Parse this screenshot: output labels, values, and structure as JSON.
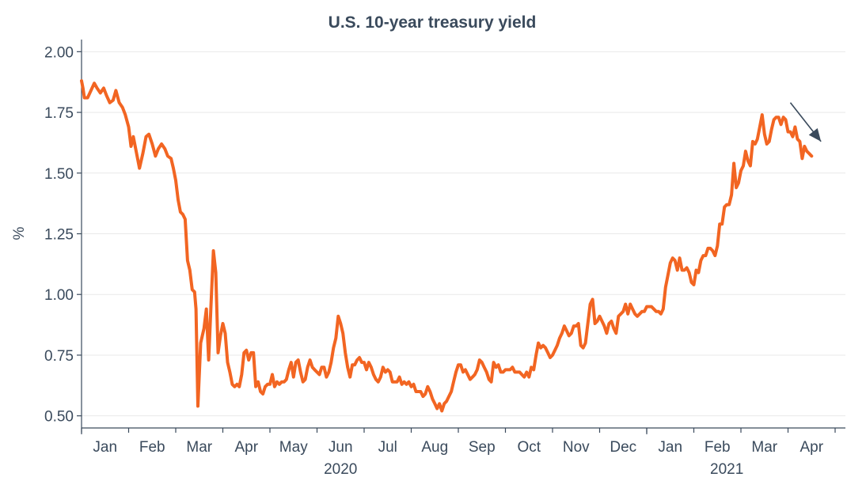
{
  "chart_data": {
    "type": "line",
    "title": "U.S. 10-year treasury yield",
    "xlabel": "",
    "ylabel": "%",
    "ylim": [
      0.45,
      2.05
    ],
    "yticks": [
      "0.50",
      "0.75",
      "1.00",
      "1.25",
      "1.50",
      "1.75",
      "2.00"
    ],
    "ytick_values": [
      0.5,
      0.75,
      1.0,
      1.25,
      1.5,
      1.75,
      2.0
    ],
    "month_labels": [
      "Jan",
      "Feb",
      "Mar",
      "Apr",
      "May",
      "Jun",
      "Jul",
      "Aug",
      "Sep",
      "Oct",
      "Nov",
      "Dec",
      "Jan",
      "Feb",
      "Mar",
      "Apr"
    ],
    "year_labels": [
      {
        "label": "2020",
        "month_index": 5.5
      },
      {
        "label": "2021",
        "month_index": 13.7
      }
    ],
    "grid": "horizontal",
    "line_color": "#f26522",
    "arrow_color": "#3a4a5c",
    "series": [
      {
        "x": [
          0.0,
          0.03,
          0.06,
          0.13,
          0.2,
          0.27,
          0.33,
          0.4,
          0.47,
          0.53,
          0.6,
          0.67,
          0.73,
          0.8,
          0.87,
          0.93,
          1.0,
          1.05,
          1.1,
          1.17,
          1.23,
          1.3,
          1.37,
          1.43,
          1.5,
          1.57,
          1.63,
          1.7,
          1.77,
          1.83,
          1.9,
          1.95,
          2.0,
          2.05,
          2.1,
          2.15,
          2.2,
          2.25,
          2.3,
          2.35,
          2.4,
          2.43,
          2.47,
          2.53,
          2.6,
          2.65,
          2.7,
          2.75,
          2.8,
          2.85,
          2.9,
          2.95,
          3.0,
          3.05,
          3.1,
          3.15,
          3.2,
          3.25,
          3.3,
          3.35,
          3.4,
          3.45,
          3.5,
          3.55,
          3.6,
          3.65,
          3.7,
          3.75,
          3.8,
          3.85,
          3.9,
          3.95,
          4.0,
          4.05,
          4.1,
          4.15,
          4.2,
          4.25,
          4.3,
          4.35,
          4.4,
          4.45,
          4.5,
          4.55,
          4.6,
          4.65,
          4.7,
          4.75,
          4.8,
          4.85,
          4.9,
          4.95,
          5.0,
          5.05,
          5.1,
          5.15,
          5.2,
          5.25,
          5.3,
          5.35,
          5.4,
          5.45,
          5.5,
          5.55,
          5.6,
          5.65,
          5.7,
          5.75,
          5.8,
          5.85,
          5.9,
          5.95,
          6.0,
          6.05,
          6.1,
          6.15,
          6.2,
          6.25,
          6.3,
          6.35,
          6.4,
          6.45,
          6.5,
          6.55,
          6.6,
          6.65,
          6.7,
          6.75,
          6.8,
          6.85,
          6.9,
          6.95,
          7.0,
          7.05,
          7.1,
          7.15,
          7.2,
          7.25,
          7.3,
          7.35,
          7.4,
          7.45,
          7.5,
          7.55,
          7.6,
          7.65,
          7.7,
          7.75,
          7.8,
          7.85,
          7.9,
          7.95,
          8.0,
          8.05,
          8.1,
          8.15,
          8.2,
          8.25,
          8.3,
          8.35,
          8.4,
          8.45,
          8.5,
          8.55,
          8.6,
          8.65,
          8.7,
          8.75,
          8.8,
          8.85,
          8.9,
          8.95,
          9.0,
          9.05,
          9.1,
          9.15,
          9.2,
          9.25,
          9.3,
          9.35,
          9.4,
          9.45,
          9.5,
          9.55,
          9.6,
          9.65,
          9.7,
          9.75,
          9.8,
          9.85,
          9.9,
          9.95,
          10.0,
          10.05,
          10.1,
          10.15,
          10.2,
          10.25,
          10.3,
          10.35,
          10.4,
          10.45,
          10.5,
          10.55,
          10.6,
          10.65,
          10.7,
          10.75,
          10.8,
          10.85,
          10.9,
          10.95,
          11.0,
          11.05,
          11.1,
          11.15,
          11.2,
          11.25,
          11.3,
          11.35,
          11.4,
          11.45,
          11.5,
          11.55,
          11.6,
          11.65,
          11.7,
          11.75,
          11.8,
          11.85,
          11.9,
          11.95,
          12.0,
          12.05,
          12.1,
          12.15,
          12.2,
          12.25,
          12.3,
          12.35,
          12.4,
          12.45,
          12.5,
          12.55,
          12.6,
          12.65,
          12.7,
          12.75,
          12.8,
          12.85,
          12.9,
          12.95,
          13.0,
          13.05,
          13.1,
          13.15,
          13.2,
          13.25,
          13.3,
          13.35,
          13.4,
          13.45,
          13.5,
          13.55,
          13.6,
          13.65,
          13.7,
          13.75,
          13.8,
          13.85,
          13.9,
          13.95,
          14.0,
          14.05,
          14.1,
          14.15,
          14.2,
          14.25,
          14.3,
          14.35,
          14.4,
          14.45,
          14.5,
          14.55,
          14.6,
          14.65,
          14.7,
          14.75,
          14.8,
          14.85,
          14.9,
          14.95,
          15.0,
          15.05,
          15.1,
          15.15,
          15.2,
          15.25,
          15.3,
          15.35,
          15.4,
          15.45,
          15.5
        ],
        "values": [
          1.88,
          1.85,
          1.81,
          1.81,
          1.84,
          1.87,
          1.85,
          1.83,
          1.85,
          1.82,
          1.79,
          1.8,
          1.84,
          1.79,
          1.77,
          1.74,
          1.69,
          1.61,
          1.65,
          1.58,
          1.52,
          1.58,
          1.65,
          1.66,
          1.62,
          1.57,
          1.6,
          1.62,
          1.6,
          1.57,
          1.56,
          1.52,
          1.47,
          1.39,
          1.34,
          1.33,
          1.31,
          1.14,
          1.1,
          1.02,
          1.01,
          0.94,
          0.54,
          0.8,
          0.86,
          0.94,
          0.73,
          0.96,
          1.18,
          1.09,
          0.76,
          0.83,
          0.88,
          0.84,
          0.72,
          0.68,
          0.63,
          0.62,
          0.63,
          0.62,
          0.67,
          0.76,
          0.77,
          0.73,
          0.76,
          0.76,
          0.62,
          0.64,
          0.6,
          0.59,
          0.62,
          0.63,
          0.63,
          0.67,
          0.62,
          0.64,
          0.63,
          0.64,
          0.64,
          0.65,
          0.69,
          0.72,
          0.66,
          0.72,
          0.73,
          0.68,
          0.64,
          0.65,
          0.7,
          0.73,
          0.7,
          0.69,
          0.68,
          0.67,
          0.7,
          0.7,
          0.66,
          0.68,
          0.72,
          0.78,
          0.82,
          0.91,
          0.88,
          0.84,
          0.76,
          0.7,
          0.66,
          0.71,
          0.71,
          0.73,
          0.74,
          0.72,
          0.72,
          0.69,
          0.72,
          0.7,
          0.67,
          0.65,
          0.64,
          0.66,
          0.7,
          0.68,
          0.69,
          0.68,
          0.64,
          0.64,
          0.64,
          0.66,
          0.63,
          0.64,
          0.63,
          0.64,
          0.62,
          0.63,
          0.6,
          0.6,
          0.6,
          0.58,
          0.59,
          0.62,
          0.6,
          0.57,
          0.55,
          0.53,
          0.55,
          0.52,
          0.55,
          0.56,
          0.58,
          0.6,
          0.64,
          0.68,
          0.71,
          0.71,
          0.68,
          0.69,
          0.67,
          0.65,
          0.66,
          0.67,
          0.69,
          0.73,
          0.72,
          0.7,
          0.68,
          0.65,
          0.64,
          0.72,
          0.7,
          0.71,
          0.68,
          0.68,
          0.69,
          0.69,
          0.69,
          0.7,
          0.68,
          0.68,
          0.68,
          0.67,
          0.66,
          0.68,
          0.66,
          0.7,
          0.69,
          0.75,
          0.8,
          0.78,
          0.79,
          0.78,
          0.76,
          0.74,
          0.75,
          0.77,
          0.79,
          0.82,
          0.84,
          0.87,
          0.85,
          0.83,
          0.84,
          0.87,
          0.87,
          0.88,
          0.79,
          0.78,
          0.8,
          0.88,
          0.96,
          0.98,
          0.88,
          0.89,
          0.91,
          0.89,
          0.87,
          0.84,
          0.88,
          0.89,
          0.86,
          0.84,
          0.91,
          0.92,
          0.93,
          0.96,
          0.92,
          0.96,
          0.94,
          0.92,
          0.91,
          0.92,
          0.93,
          0.93,
          0.95,
          0.95,
          0.95,
          0.94,
          0.93,
          0.93,
          0.92,
          0.94,
          1.03,
          1.08,
          1.13,
          1.15,
          1.14,
          1.1,
          1.15,
          1.1,
          1.1,
          1.11,
          1.09,
          1.05,
          1.04,
          1.1,
          1.09,
          1.14,
          1.16,
          1.16,
          1.19,
          1.19,
          1.18,
          1.16,
          1.2,
          1.29,
          1.29,
          1.36,
          1.37,
          1.37,
          1.41,
          1.54,
          1.44,
          1.46,
          1.51,
          1.53,
          1.59,
          1.55,
          1.53,
          1.63,
          1.62,
          1.64,
          1.69,
          1.74,
          1.66,
          1.62,
          1.63,
          1.68,
          1.72,
          1.73,
          1.73,
          1.7,
          1.73,
          1.72,
          1.67,
          1.67,
          1.65,
          1.69,
          1.64,
          1.63,
          1.56,
          1.61,
          1.59,
          1.58,
          1.57
        ]
      }
    ],
    "annotations": [
      {
        "type": "arrow",
        "description": "downward trend arrow",
        "from_x": 15.05,
        "from_y": 1.79,
        "to_x": 15.7,
        "to_y": 1.63
      }
    ]
  }
}
